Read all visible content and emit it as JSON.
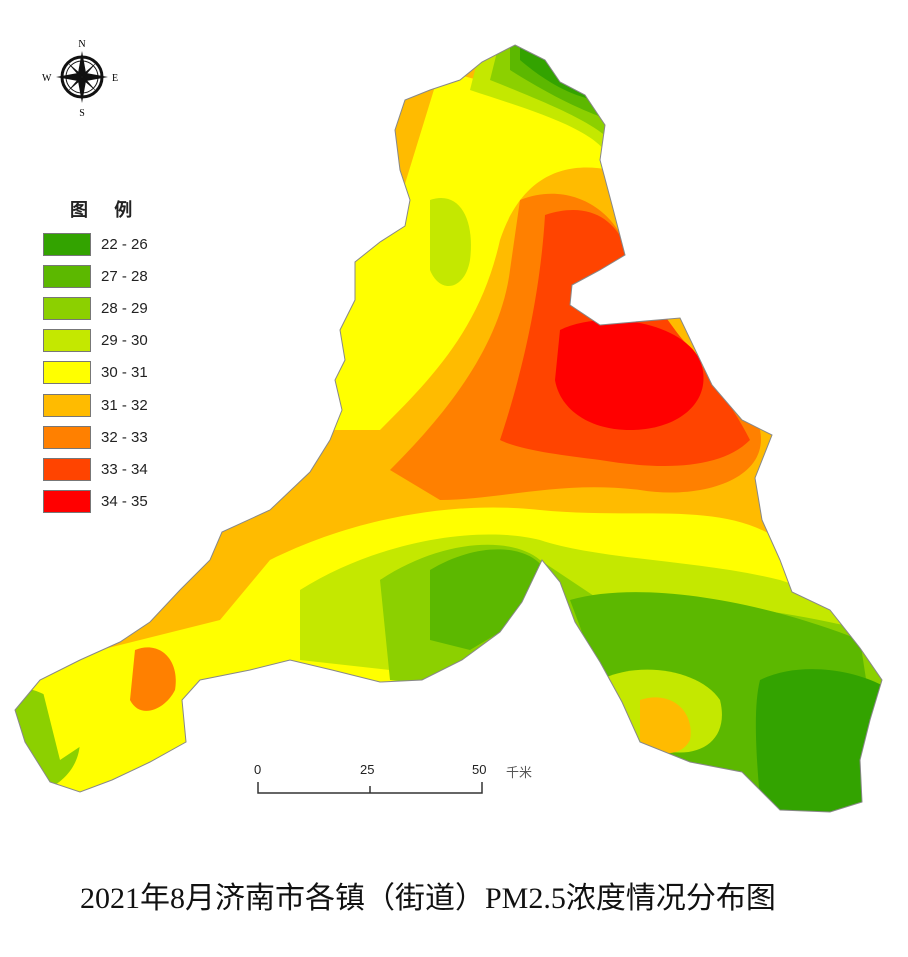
{
  "title": "2021年8月济南市各镇（街道）PM2.5浓度情况分布图",
  "compass": {
    "icon": "compass-rose-icon",
    "n": "N",
    "s": "S",
    "e": "E",
    "w": "W"
  },
  "legend": {
    "title": "图 例",
    "items": [
      {
        "label": "22 - 26",
        "color": "#33a300"
      },
      {
        "label": "27 - 28",
        "color": "#5cb800"
      },
      {
        "label": "28 - 29",
        "color": "#8cd000"
      },
      {
        "label": "29 - 30",
        "color": "#c4e800"
      },
      {
        "label": "30 - 31",
        "color": "#ffff00"
      },
      {
        "label": "31 - 32",
        "color": "#ffbb00"
      },
      {
        "label": "32 - 33",
        "color": "#ff8000"
      },
      {
        "label": "33 - 34",
        "color": "#ff4400"
      },
      {
        "label": "34 - 35",
        "color": "#ff0000"
      }
    ]
  },
  "scale_bar": {
    "ticks": [
      "0",
      "25",
      "50"
    ],
    "unit": "千米"
  }
}
